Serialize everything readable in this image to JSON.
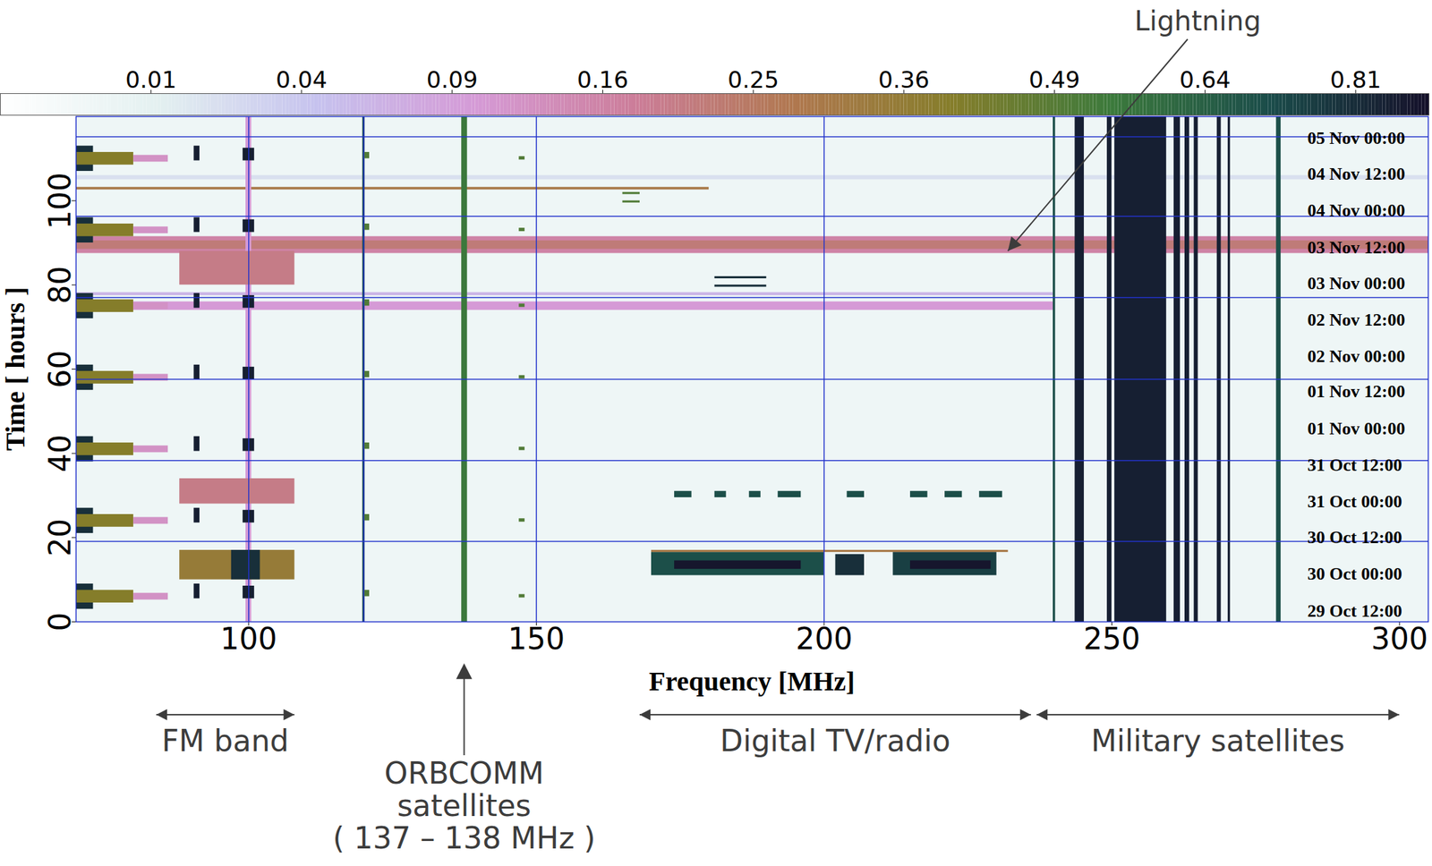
{
  "chart_data": {
    "type": "heatmap",
    "x_label": "Frequency [MHz]",
    "y_label": "Time [ hours ]",
    "xlim": [
      70,
      305
    ],
    "xticks": [
      100,
      150,
      200,
      250,
      300
    ],
    "ylim": [
      0,
      120
    ],
    "yticks": [
      0,
      20,
      40,
      60,
      80,
      100
    ],
    "colorbar": {
      "range": [
        0,
        0.9
      ],
      "ticks": [
        0.01,
        0.04,
        0.09,
        0.16,
        0.25,
        0.36,
        0.49,
        0.64,
        0.81
      ]
    },
    "grid_lines": {
      "x": [
        100,
        120,
        150,
        200
      ],
      "y": [
        19.1,
        38.3,
        57.6,
        77,
        96.3,
        115.2
      ]
    },
    "time_labels": {
      "x": 284,
      "labels": [
        {
          "text": "05 Nov 00:00",
          "y": 114.8
        },
        {
          "text": "04 Nov 12:00",
          "y": 106.3
        },
        {
          "text": "04 Nov 00:00",
          "y": 97.6
        },
        {
          "text": "03 Nov 12:00",
          "y": 88.9
        },
        {
          "text": "03 Nov 00:00",
          "y": 80.4
        },
        {
          "text": "02 Nov 12:00",
          "y": 71.7
        },
        {
          "text": "02 Nov 00:00",
          "y": 63.0
        },
        {
          "text": "01 Nov 12:00",
          "y": 54.6
        },
        {
          "text": "01 Nov 00:00",
          "y": 45.9
        },
        {
          "text": "31 Oct 12:00",
          "y": 37.2
        },
        {
          "text": "31 Oct 00:00",
          "y": 28.5
        },
        {
          "text": "30 Oct 12:00",
          "y": 20.0
        },
        {
          "text": "30 Oct 00:00",
          "y": 11.3
        },
        {
          "text": "29 Oct 12:00",
          "y": 2.6
        }
      ]
    },
    "annotations": [
      {
        "text": "Lightning",
        "x": 265,
        "target": [
          232,
          88
        ]
      },
      {
        "text": "FM band",
        "span": [
          84,
          108
        ]
      },
      {
        "text": [
          "ORBCOMM",
          "satellites",
          "( 137 – 138 MHz )"
        ],
        "x": 137.5
      },
      {
        "text": "Digital TV/radio",
        "span": [
          168,
          236
        ]
      },
      {
        "text": "Military satellites",
        "span": [
          237,
          300
        ]
      }
    ],
    "cells": [
      {
        "freq": [
          70,
          305
        ],
        "hours": [
          0,
          120
        ],
        "value": 0.004
      },
      {
        "freq": [
          70,
          305
        ],
        "hours": [
          105,
          106
        ],
        "value": 0.02
      },
      {
        "freq": [
          70,
          180
        ],
        "hours": [
          102.6,
          103.2
        ],
        "value": 0.3
      },
      {
        "freq": [
          70,
          305
        ],
        "hours": [
          87.5,
          91.5
        ],
        "value": 0.16
      },
      {
        "freq": [
          70,
          305
        ],
        "hours": [
          88.5,
          90.5
        ],
        "value": 0.22
      },
      {
        "freq": [
          70,
          240
        ],
        "hours": [
          74,
          76
        ],
        "value": 0.1
      },
      {
        "freq": [
          70,
          240
        ],
        "hours": [
          77.5,
          78.2
        ],
        "value": 0.06
      },
      {
        "freq": [
          99.5,
          100.5
        ],
        "hours": [
          0,
          120
        ],
        "value": 0.1
      },
      {
        "freq": [
          119.8,
          120.2
        ],
        "hours": [
          0,
          120
        ],
        "value": 0.7
      },
      {
        "freq": [
          239.8,
          240.2
        ],
        "hours": [
          0,
          120
        ],
        "value": 0.7
      },
      {
        "freq": [
          137,
          138
        ],
        "hours": [
          0,
          120
        ],
        "value": 0.55
      },
      {
        "freq": [
          88,
          108
        ],
        "hours": [
          10,
          17
        ],
        "value": 0.35
      },
      {
        "freq": [
          97,
          102
        ],
        "hours": [
          10,
          17
        ],
        "value": 0.8
      },
      {
        "freq": [
          88,
          108
        ],
        "hours": [
          28,
          34
        ],
        "value": 0.2
      },
      {
        "freq": [
          88,
          108
        ],
        "hours": [
          80,
          88
        ],
        "value": 0.2
      },
      {
        "freq": [
          70,
          73
        ],
        "hours": [
          107,
          113
        ],
        "value": 0.8
      },
      {
        "freq": [
          70,
          80
        ],
        "hours": [
          108.5,
          111.5
        ],
        "value": 0.4
      },
      {
        "freq": [
          80,
          86
        ],
        "hours": [
          109.2,
          110.8
        ],
        "value": 0.12
      },
      {
        "freq": [
          90.5,
          91.5
        ],
        "hours": [
          109.5,
          113
        ],
        "value": 0.85
      },
      {
        "freq": [
          99,
          101
        ],
        "hours": [
          109.5,
          112.5
        ],
        "value": 0.85
      },
      {
        "freq": [
          120,
          121
        ],
        "hours": [
          110,
          111.5
        ],
        "value": 0.5
      },
      {
        "freq": [
          147,
          148
        ],
        "hours": [
          109.7,
          110.5
        ],
        "value": 0.5
      },
      {
        "freq": [
          70,
          73
        ],
        "hours": [
          90,
          96
        ],
        "value": 0.8
      },
      {
        "freq": [
          70,
          80
        ],
        "hours": [
          91.5,
          94.5
        ],
        "value": 0.4
      },
      {
        "freq": [
          80,
          86
        ],
        "hours": [
          92.2,
          93.8
        ],
        "value": 0.12
      },
      {
        "freq": [
          90.5,
          91.5
        ],
        "hours": [
          92.5,
          96
        ],
        "value": 0.85
      },
      {
        "freq": [
          99,
          101
        ],
        "hours": [
          92.5,
          95.5
        ],
        "value": 0.85
      },
      {
        "freq": [
          120,
          121
        ],
        "hours": [
          93,
          94.5
        ],
        "value": 0.5
      },
      {
        "freq": [
          147,
          148
        ],
        "hours": [
          92.7,
          93.5
        ],
        "value": 0.5
      },
      {
        "freq": [
          70,
          73
        ],
        "hours": [
          72,
          78
        ],
        "value": 0.8
      },
      {
        "freq": [
          70,
          80
        ],
        "hours": [
          73.5,
          76.5
        ],
        "value": 0.4
      },
      {
        "freq": [
          80,
          86
        ],
        "hours": [
          74.2,
          75.8
        ],
        "value": 0.12
      },
      {
        "freq": [
          90.5,
          91.5
        ],
        "hours": [
          74.5,
          78
        ],
        "value": 0.85
      },
      {
        "freq": [
          99,
          101
        ],
        "hours": [
          74.5,
          77.5
        ],
        "value": 0.85
      },
      {
        "freq": [
          120,
          121
        ],
        "hours": [
          75,
          76.5
        ],
        "value": 0.5
      },
      {
        "freq": [
          147,
          148
        ],
        "hours": [
          74.7,
          75.5
        ],
        "value": 0.5
      },
      {
        "freq": [
          70,
          73
        ],
        "hours": [
          55,
          61
        ],
        "value": 0.8
      },
      {
        "freq": [
          70,
          80
        ],
        "hours": [
          56.5,
          59.5
        ],
        "value": 0.4
      },
      {
        "freq": [
          80,
          86
        ],
        "hours": [
          57.2,
          58.8
        ],
        "value": 0.12
      },
      {
        "freq": [
          90.5,
          91.5
        ],
        "hours": [
          57.5,
          61
        ],
        "value": 0.85
      },
      {
        "freq": [
          99,
          101
        ],
        "hours": [
          57.5,
          60.5
        ],
        "value": 0.85
      },
      {
        "freq": [
          120,
          121
        ],
        "hours": [
          58,
          59.5
        ],
        "value": 0.5
      },
      {
        "freq": [
          147,
          148
        ],
        "hours": [
          57.7,
          58.5
        ],
        "value": 0.5
      },
      {
        "freq": [
          70,
          73
        ],
        "hours": [
          38,
          44
        ],
        "value": 0.8
      },
      {
        "freq": [
          70,
          80
        ],
        "hours": [
          39.5,
          42.5
        ],
        "value": 0.4
      },
      {
        "freq": [
          80,
          86
        ],
        "hours": [
          40.2,
          41.8
        ],
        "value": 0.12
      },
      {
        "freq": [
          90.5,
          91.5
        ],
        "hours": [
          40.5,
          44
        ],
        "value": 0.85
      },
      {
        "freq": [
          99,
          101
        ],
        "hours": [
          40.5,
          43.5
        ],
        "value": 0.85
      },
      {
        "freq": [
          120,
          121
        ],
        "hours": [
          41,
          42.5
        ],
        "value": 0.5
      },
      {
        "freq": [
          147,
          148
        ],
        "hours": [
          40.7,
          41.5
        ],
        "value": 0.5
      },
      {
        "freq": [
          70,
          73
        ],
        "hours": [
          21,
          27
        ],
        "value": 0.8
      },
      {
        "freq": [
          70,
          80
        ],
        "hours": [
          22.5,
          25.5
        ],
        "value": 0.4
      },
      {
        "freq": [
          80,
          86
        ],
        "hours": [
          23.2,
          24.8
        ],
        "value": 0.12
      },
      {
        "freq": [
          90.5,
          91.5
        ],
        "hours": [
          23.5,
          27
        ],
        "value": 0.85
      },
      {
        "freq": [
          99,
          101
        ],
        "hours": [
          23.5,
          26.5
        ],
        "value": 0.85
      },
      {
        "freq": [
          120,
          121
        ],
        "hours": [
          24,
          25.5
        ],
        "value": 0.5
      },
      {
        "freq": [
          147,
          148
        ],
        "hours": [
          23.7,
          24.5
        ],
        "value": 0.5
      },
      {
        "freq": [
          70,
          73
        ],
        "hours": [
          3,
          9
        ],
        "value": 0.8
      },
      {
        "freq": [
          70,
          80
        ],
        "hours": [
          4.5,
          7.5
        ],
        "value": 0.4
      },
      {
        "freq": [
          80,
          86
        ],
        "hours": [
          5.2,
          6.8
        ],
        "value": 0.12
      },
      {
        "freq": [
          90.5,
          91.5
        ],
        "hours": [
          5.5,
          9
        ],
        "value": 0.85
      },
      {
        "freq": [
          99,
          101
        ],
        "hours": [
          5.5,
          8.5
        ],
        "value": 0.85
      },
      {
        "freq": [
          120,
          121
        ],
        "hours": [
          6,
          7.5
        ],
        "value": 0.5
      },
      {
        "freq": [
          147,
          148
        ],
        "hours": [
          5.7,
          6.5
        ],
        "value": 0.5
      },
      {
        "freq": [
          170,
          200
        ],
        "hours": [
          11,
          16.5
        ],
        "value": 0.7
      },
      {
        "freq": [
          174,
          196
        ],
        "hours": [
          12.5,
          14.5
        ],
        "value": 0.88
      },
      {
        "freq": [
          202,
          207
        ],
        "hours": [
          11,
          16
        ],
        "value": 0.8
      },
      {
        "freq": [
          212,
          230
        ],
        "hours": [
          11,
          16.5
        ],
        "value": 0.75
      },
      {
        "freq": [
          215,
          229
        ],
        "hours": [
          12.5,
          14.5
        ],
        "value": 0.88
      },
      {
        "freq": [
          170,
          232
        ],
        "hours": [
          16.5,
          17
        ],
        "value": 0.3
      },
      {
        "freq": [
          174,
          177
        ],
        "hours": [
          29.5,
          31
        ],
        "value": 0.7
      },
      {
        "freq": [
          181,
          183
        ],
        "hours": [
          29.5,
          31
        ],
        "value": 0.7
      },
      {
        "freq": [
          187,
          189
        ],
        "hours": [
          29.5,
          31
        ],
        "value": 0.7
      },
      {
        "freq": [
          192,
          196
        ],
        "hours": [
          29.5,
          31
        ],
        "value": 0.7
      },
      {
        "freq": [
          204,
          207
        ],
        "hours": [
          29.5,
          31
        ],
        "value": 0.7
      },
      {
        "freq": [
          215,
          218
        ],
        "hours": [
          29.5,
          31
        ],
        "value": 0.7
      },
      {
        "freq": [
          221,
          224
        ],
        "hours": [
          29.5,
          31
        ],
        "value": 0.7
      },
      {
        "freq": [
          227,
          231
        ],
        "hours": [
          29.5,
          31
        ],
        "value": 0.7
      },
      {
        "freq": [
          181,
          190
        ],
        "hours": [
          79.5,
          80
        ],
        "value": 0.8
      },
      {
        "freq": [
          181,
          190
        ],
        "hours": [
          81.5,
          82
        ],
        "value": 0.8
      },
      {
        "freq": [
          165,
          168
        ],
        "hours": [
          99.5,
          100
        ],
        "value": 0.5
      },
      {
        "freq": [
          165,
          168
        ],
        "hours": [
          101.5,
          102
        ],
        "value": 0.5
      },
      {
        "freq": [
          243.6,
          245.2
        ],
        "hours": [
          0,
          120
        ],
        "value": 0.85
      },
      {
        "freq": [
          249.2,
          250
        ],
        "hours": [
          0,
          120
        ],
        "value": 0.85
      },
      {
        "freq": [
          250.5,
          259.5
        ],
        "hours": [
          0,
          120
        ],
        "value": 0.85
      },
      {
        "freq": [
          260.8,
          261.9
        ],
        "hours": [
          0,
          120
        ],
        "value": 0.85
      },
      {
        "freq": [
          262.7,
          263.5
        ],
        "hours": [
          0,
          120
        ],
        "value": 0.85
      },
      {
        "freq": [
          264.3,
          265
        ],
        "hours": [
          0,
          120
        ],
        "value": 0.85
      },
      {
        "freq": [
          268.3,
          269
        ],
        "hours": [
          0,
          120
        ],
        "value": 0.85
      },
      {
        "freq": [
          270.2,
          270.6
        ],
        "hours": [
          0,
          120
        ],
        "value": 0.85
      },
      {
        "freq": [
          278.6,
          279.4
        ],
        "hours": [
          0,
          120
        ],
        "value": 0.7
      }
    ]
  }
}
